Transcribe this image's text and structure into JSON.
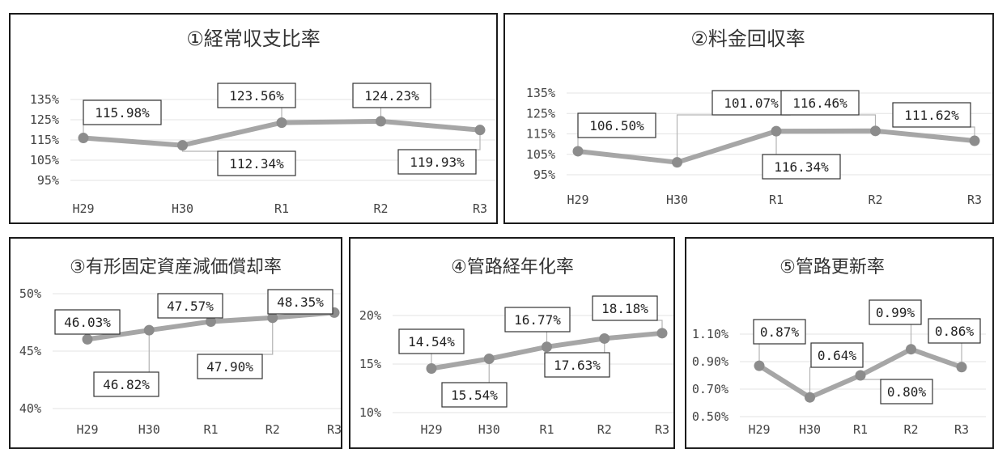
{
  "charts": [
    {
      "type": "line",
      "title": "①経常収支比率",
      "categories": [
        "H29",
        "H30",
        "R1",
        "R2",
        "R3"
      ],
      "values": [
        115.98,
        112.34,
        123.56,
        124.23,
        119.93
      ],
      "labels": [
        "115.98%",
        "112.34%",
        "123.56%",
        "124.23%",
        "119.93%"
      ],
      "ticks": [
        "135%",
        "125%",
        "115%",
        "105%",
        "95%"
      ],
      "tick_values": [
        135,
        125,
        115,
        105,
        95
      ],
      "ylim": [
        95,
        135
      ],
      "grid": true,
      "line_color": "#a6a6a6"
    },
    {
      "type": "line",
      "title": "②料金回収率",
      "categories": [
        "H29",
        "H30",
        "R1",
        "R2",
        "R3"
      ],
      "values": [
        106.5,
        101.07,
        116.34,
        116.46,
        111.62
      ],
      "labels": [
        "106.50%",
        "101.07%",
        "116.34%",
        "116.46%",
        "111.62%"
      ],
      "ticks": [
        "135%",
        "125%",
        "115%",
        "105%",
        "95%"
      ],
      "tick_values": [
        135,
        125,
        115,
        105,
        95
      ],
      "ylim": [
        95,
        135
      ],
      "grid": true,
      "line_color": "#a6a6a6"
    },
    {
      "type": "line",
      "title": "③有形固定資産減価償却率",
      "categories": [
        "H29",
        "H30",
        "R1",
        "R2",
        "R3"
      ],
      "values": [
        46.03,
        46.82,
        47.57,
        47.9,
        48.35
      ],
      "labels": [
        "46.03%",
        "46.82%",
        "47.57%",
        "47.90%",
        "48.35%"
      ],
      "ticks": [
        "50%",
        "45%",
        "40%"
      ],
      "tick_values": [
        50,
        45,
        40
      ],
      "ylim": [
        40,
        50
      ],
      "grid": true,
      "line_color": "#a6a6a6"
    },
    {
      "type": "line",
      "title": "④管路経年化率",
      "categories": [
        "H29",
        "H30",
        "R1",
        "R2",
        "R3"
      ],
      "values": [
        14.54,
        15.54,
        16.77,
        17.63,
        18.18
      ],
      "labels": [
        "14.54%",
        "15.54%",
        "16.77%",
        "17.63%",
        "18.18%"
      ],
      "ticks": [
        "20%",
        "15%",
        "10%"
      ],
      "tick_values": [
        20,
        15,
        10
      ],
      "ylim": [
        10,
        20
      ],
      "grid": true,
      "line_color": "#a6a6a6"
    },
    {
      "type": "line",
      "title": "⑤管路更新率",
      "categories": [
        "H29",
        "H30",
        "R1",
        "R2",
        "R3"
      ],
      "values": [
        0.87,
        0.64,
        0.8,
        0.99,
        0.86
      ],
      "labels": [
        "0.87%",
        "0.64%",
        "0.80%",
        "0.99%",
        "0.86%"
      ],
      "ticks": [
        "1.10%",
        "0.90%",
        "0.70%",
        "0.50%"
      ],
      "tick_values": [
        1.1,
        0.9,
        0.7,
        0.5
      ],
      "ylim": [
        0.5,
        1.1
      ],
      "grid": true,
      "line_color": "#a6a6a6"
    }
  ]
}
